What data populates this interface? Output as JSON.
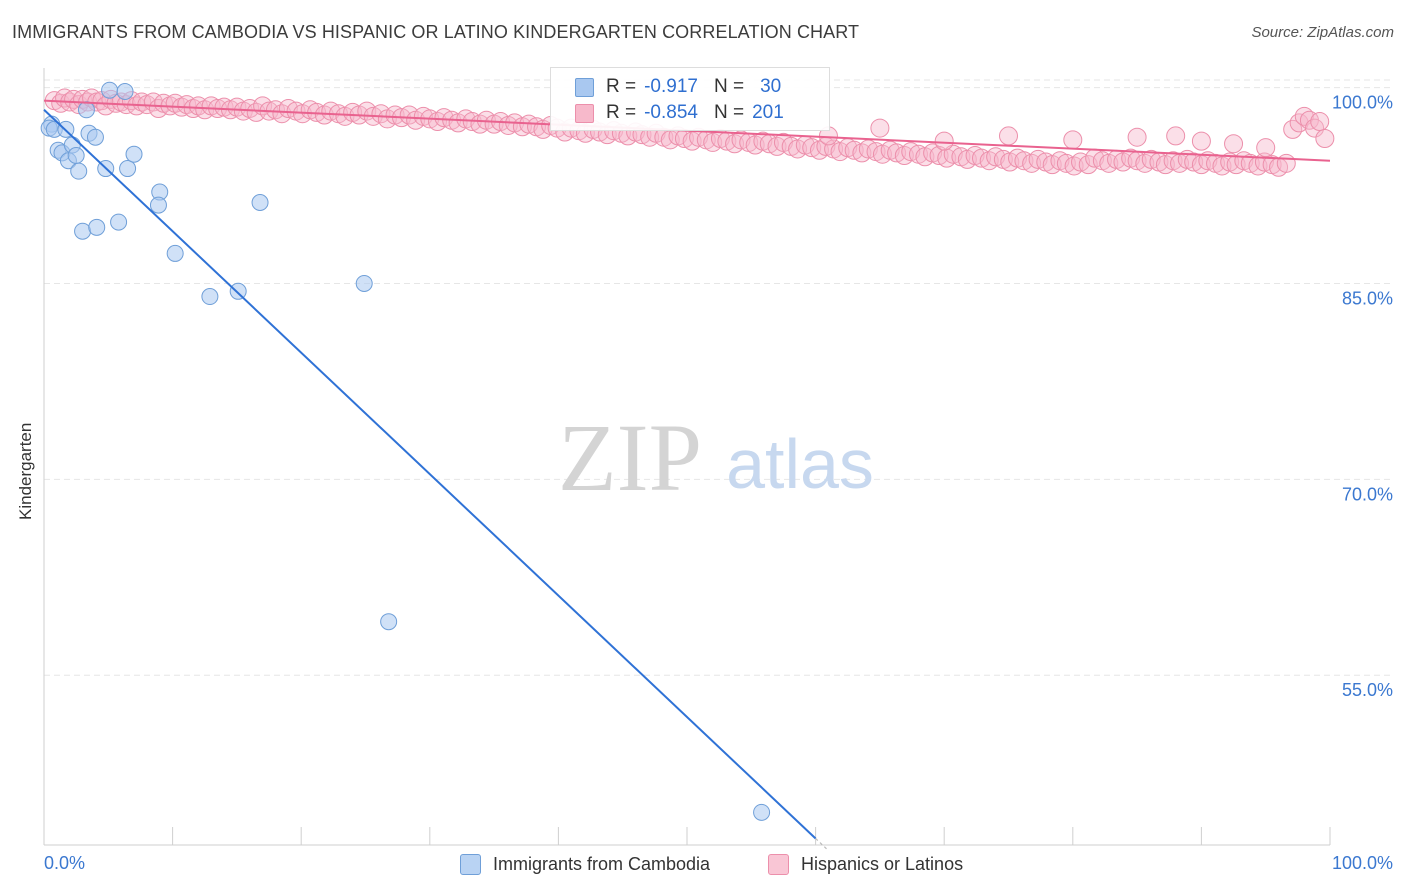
{
  "title": "IMMIGRANTS FROM CAMBODIA VS HISPANIC OR LATINO KINDERGARTEN CORRELATION CHART",
  "source": "Source: ZipAtlas.com",
  "watermark": {
    "zip": "ZIP",
    "atlas": "atlas"
  },
  "legend": {
    "series1": {
      "r_label": "R =",
      "r_value": "-0.917",
      "n_label": "N =",
      "n_value": "30"
    },
    "series2": {
      "r_label": "R =",
      "r_value": "-0.854",
      "n_label": "N =",
      "n_value": "201"
    }
  },
  "colors": {
    "blue_fill": "#a9c8f0",
    "blue_stroke": "#6f9fd8",
    "blue_line": "#2f72d6",
    "pink_fill": "#f7b9cb",
    "pink_stroke": "#ec8fab",
    "pink_line": "#e9628f",
    "grid": "#e6e6e6",
    "tick_label": "#3b78d0"
  },
  "chart_data": {
    "type": "scatter",
    "title": "IMMIGRANTS FROM CAMBODIA VS HISPANIC OR LATINO KINDERGARTEN CORRELATION CHART",
    "xlabel": "",
    "ylabel": "Kindergarten",
    "xlim": [
      0,
      100
    ],
    "ylim": [
      42,
      101.5
    ],
    "x_tick_labels": [
      "0.0%",
      "100.0%"
    ],
    "y_ticks": [
      55,
      70,
      85,
      100
    ],
    "y_tick_labels": [
      "55.0%",
      "70.0%",
      "85.0%",
      "100.0%"
    ],
    "series": [
      {
        "name": "Immigrants from Cambodia",
        "r": -0.917,
        "n": 30,
        "trend": {
          "x0": 0,
          "y0": 98.3,
          "x1": 60,
          "y1": 42.5,
          "dash_to_x": 61
        },
        "points": [
          [
            0.6,
            97.2
          ],
          [
            0.4,
            96.9
          ],
          [
            0.8,
            96.8
          ],
          [
            1.1,
            95.2
          ],
          [
            1.4,
            95.0
          ],
          [
            1.7,
            96.8
          ],
          [
            1.9,
            94.4
          ],
          [
            2.2,
            95.6
          ],
          [
            2.5,
            94.8
          ],
          [
            2.7,
            93.6
          ],
          [
            3.3,
            98.3
          ],
          [
            3.5,
            96.5
          ],
          [
            4.0,
            96.2
          ],
          [
            4.8,
            93.8
          ],
          [
            5.1,
            99.8
          ],
          [
            6.3,
            99.7
          ],
          [
            6.5,
            93.8
          ],
          [
            7.0,
            94.9
          ],
          [
            9.0,
            92.0
          ],
          [
            8.9,
            91.0
          ],
          [
            10.2,
            87.3
          ],
          [
            3.0,
            89.0
          ],
          [
            4.1,
            89.3
          ],
          [
            5.8,
            89.7
          ],
          [
            12.9,
            84.0
          ],
          [
            15.1,
            84.4
          ],
          [
            16.8,
            91.2
          ],
          [
            24.9,
            85.0
          ],
          [
            26.8,
            59.1
          ],
          [
            55.8,
            44.5
          ]
        ]
      },
      {
        "name": "Hispanics or Latinos",
        "r": -0.854,
        "n": 201,
        "trend": {
          "x0": 0,
          "y0": 99.0,
          "x1": 100,
          "y1": 94.4
        },
        "points": [
          [
            0.8,
            99.0
          ],
          [
            1.3,
            98.8
          ],
          [
            1.6,
            99.2
          ],
          [
            2.0,
            98.9
          ],
          [
            2.3,
            99.1
          ],
          [
            2.7,
            98.7
          ],
          [
            3.0,
            99.1
          ],
          [
            3.4,
            98.9
          ],
          [
            3.7,
            99.2
          ],
          [
            4.1,
            98.9
          ],
          [
            4.5,
            99.0
          ],
          [
            4.8,
            98.6
          ],
          [
            5.2,
            99.1
          ],
          [
            5.6,
            98.8
          ],
          [
            6.0,
            98.9
          ],
          [
            6.4,
            98.7
          ],
          [
            6.8,
            99.0
          ],
          [
            7.2,
            98.6
          ],
          [
            7.6,
            98.9
          ],
          [
            8.0,
            98.7
          ],
          [
            8.5,
            98.9
          ],
          [
            8.9,
            98.4
          ],
          [
            9.3,
            98.8
          ],
          [
            9.8,
            98.6
          ],
          [
            10.2,
            98.8
          ],
          [
            10.7,
            98.5
          ],
          [
            11.1,
            98.7
          ],
          [
            11.6,
            98.4
          ],
          [
            12.0,
            98.6
          ],
          [
            12.5,
            98.3
          ],
          [
            13.0,
            98.6
          ],
          [
            13.5,
            98.4
          ],
          [
            14.0,
            98.5
          ],
          [
            14.5,
            98.3
          ],
          [
            15.0,
            98.5
          ],
          [
            15.5,
            98.2
          ],
          [
            16.0,
            98.4
          ],
          [
            16.5,
            98.1
          ],
          [
            17.0,
            98.6
          ],
          [
            17.5,
            98.2
          ],
          [
            18.0,
            98.3
          ],
          [
            18.5,
            98.0
          ],
          [
            19.0,
            98.4
          ],
          [
            19.6,
            98.2
          ],
          [
            20.1,
            98.0
          ],
          [
            20.7,
            98.3
          ],
          [
            21.2,
            98.1
          ],
          [
            21.8,
            97.9
          ],
          [
            22.3,
            98.2
          ],
          [
            22.9,
            98.0
          ],
          [
            23.4,
            97.8
          ],
          [
            24.0,
            98.1
          ],
          [
            24.5,
            97.9
          ],
          [
            25.1,
            98.2
          ],
          [
            25.6,
            97.8
          ],
          [
            26.2,
            98.0
          ],
          [
            26.7,
            97.6
          ],
          [
            27.3,
            97.9
          ],
          [
            27.8,
            97.7
          ],
          [
            28.4,
            97.9
          ],
          [
            28.9,
            97.5
          ],
          [
            29.5,
            97.8
          ],
          [
            30.0,
            97.6
          ],
          [
            30.6,
            97.4
          ],
          [
            31.1,
            97.7
          ],
          [
            31.7,
            97.5
          ],
          [
            32.2,
            97.3
          ],
          [
            32.8,
            97.6
          ],
          [
            33.3,
            97.4
          ],
          [
            33.9,
            97.2
          ],
          [
            34.4,
            97.5
          ],
          [
            35.0,
            97.2
          ],
          [
            35.5,
            97.4
          ],
          [
            36.1,
            97.1
          ],
          [
            36.6,
            97.3
          ],
          [
            37.2,
            97.0
          ],
          [
            37.7,
            97.2
          ],
          [
            38.3,
            97.0
          ],
          [
            38.8,
            96.8
          ],
          [
            39.4,
            97.1
          ],
          [
            39.9,
            96.9
          ],
          [
            40.5,
            96.6
          ],
          [
            41.0,
            96.9
          ],
          [
            41.6,
            96.7
          ],
          [
            42.1,
            96.5
          ],
          [
            42.7,
            96.8
          ],
          [
            43.2,
            96.6
          ],
          [
            43.8,
            96.4
          ],
          [
            44.3,
            96.7
          ],
          [
            44.9,
            96.5
          ],
          [
            45.4,
            96.3
          ],
          [
            46.0,
            96.6
          ],
          [
            46.5,
            96.4
          ],
          [
            47.1,
            96.2
          ],
          [
            47.6,
            96.5
          ],
          [
            48.2,
            96.2
          ],
          [
            48.7,
            96.0
          ],
          [
            49.3,
            96.3
          ],
          [
            49.8,
            96.1
          ],
          [
            50.4,
            95.9
          ],
          [
            50.9,
            96.2
          ],
          [
            51.5,
            96.0
          ],
          [
            52.0,
            95.8
          ],
          [
            52.6,
            96.1
          ],
          [
            53.1,
            95.9
          ],
          [
            53.7,
            95.7
          ],
          [
            54.2,
            96.0
          ],
          [
            54.8,
            95.8
          ],
          [
            55.3,
            95.6
          ],
          [
            55.9,
            95.9
          ],
          [
            56.4,
            95.7
          ],
          [
            57.0,
            95.5
          ],
          [
            57.5,
            95.8
          ],
          [
            58.1,
            95.5
          ],
          [
            58.6,
            95.3
          ],
          [
            59.2,
            95.6
          ],
          [
            59.7,
            95.4
          ],
          [
            60.3,
            95.2
          ],
          [
            60.8,
            95.5
          ],
          [
            61.4,
            95.3
          ],
          [
            61.9,
            95.1
          ],
          [
            62.5,
            95.4
          ],
          [
            63.0,
            95.2
          ],
          [
            63.6,
            95.0
          ],
          [
            64.1,
            95.3
          ],
          [
            64.7,
            95.1
          ],
          [
            65.2,
            94.9
          ],
          [
            65.8,
            95.2
          ],
          [
            66.3,
            95.0
          ],
          [
            66.9,
            94.8
          ],
          [
            67.4,
            95.1
          ],
          [
            68.0,
            94.9
          ],
          [
            68.5,
            94.7
          ],
          [
            69.1,
            95.0
          ],
          [
            69.6,
            94.8
          ],
          [
            70.2,
            94.6
          ],
          [
            70.7,
            94.9
          ],
          [
            71.3,
            94.7
          ],
          [
            71.8,
            94.5
          ],
          [
            72.4,
            94.8
          ],
          [
            72.9,
            94.6
          ],
          [
            73.5,
            94.4
          ],
          [
            74.0,
            94.7
          ],
          [
            74.6,
            94.5
          ],
          [
            75.1,
            94.3
          ],
          [
            75.7,
            94.6
          ],
          [
            76.2,
            94.4
          ],
          [
            76.8,
            94.2
          ],
          [
            77.3,
            94.5
          ],
          [
            77.9,
            94.3
          ],
          [
            78.4,
            94.1
          ],
          [
            79.0,
            94.4
          ],
          [
            79.5,
            94.2
          ],
          [
            80.1,
            94.0
          ],
          [
            80.6,
            94.3
          ],
          [
            81.2,
            94.1
          ],
          [
            81.7,
            94.6
          ],
          [
            82.3,
            94.4
          ],
          [
            82.8,
            94.2
          ],
          [
            83.4,
            94.5
          ],
          [
            83.9,
            94.3
          ],
          [
            84.5,
            94.6
          ],
          [
            85.0,
            94.4
          ],
          [
            85.6,
            94.2
          ],
          [
            86.1,
            94.5
          ],
          [
            86.7,
            94.3
          ],
          [
            87.2,
            94.1
          ],
          [
            87.8,
            94.4
          ],
          [
            88.3,
            94.2
          ],
          [
            88.9,
            94.5
          ],
          [
            89.4,
            94.3
          ],
          [
            90.0,
            94.1
          ],
          [
            90.5,
            94.4
          ],
          [
            91.1,
            94.2
          ],
          [
            91.6,
            94.0
          ],
          [
            92.2,
            94.3
          ],
          [
            92.7,
            94.1
          ],
          [
            93.3,
            94.4
          ],
          [
            93.8,
            94.2
          ],
          [
            94.4,
            94.0
          ],
          [
            94.9,
            94.3
          ],
          [
            95.5,
            94.1
          ],
          [
            96.0,
            93.9
          ],
          [
            96.6,
            94.2
          ],
          [
            97.1,
            96.8
          ],
          [
            97.6,
            97.3
          ],
          [
            98.0,
            97.8
          ],
          [
            98.4,
            97.5
          ],
          [
            98.8,
            96.9
          ],
          [
            99.2,
            97.4
          ],
          [
            99.6,
            96.1
          ],
          [
            61.0,
            96.3
          ],
          [
            65.0,
            96.9
          ],
          [
            70.0,
            95.9
          ],
          [
            75.0,
            96.3
          ],
          [
            80.0,
            96.0
          ],
          [
            85.0,
            96.2
          ],
          [
            90.0,
            95.9
          ],
          [
            88.0,
            96.3
          ],
          [
            92.5,
            95.7
          ],
          [
            95.0,
            95.4
          ]
        ]
      }
    ],
    "legend_position": "top-center",
    "grid": true
  },
  "bottom_legend": {
    "series1": "Immigrants from Cambodia",
    "series2": "Hispanics or Latinos"
  }
}
